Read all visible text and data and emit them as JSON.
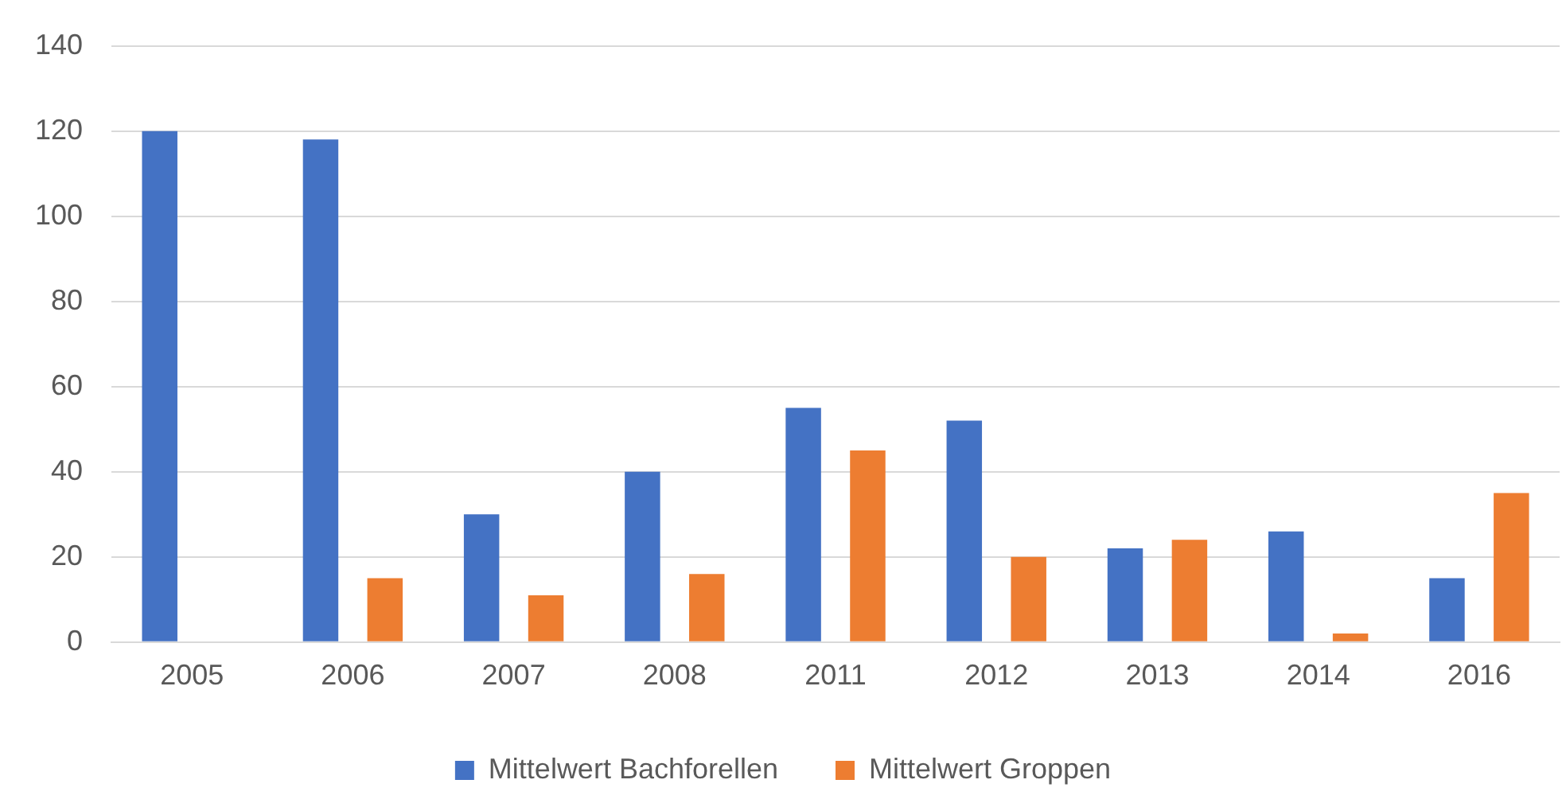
{
  "chart_data": {
    "type": "bar",
    "categories": [
      "2005",
      "2006",
      "2007",
      "2008",
      "2011",
      "2012",
      "2013",
      "2014",
      "2016"
    ],
    "series": [
      {
        "name": "Mittelwert Bachforellen",
        "color": "#4472c4",
        "values": [
          120,
          118,
          30,
          40,
          55,
          52,
          22,
          26,
          15
        ]
      },
      {
        "name": "Mittelwert Groppen",
        "color": "#ed7d31",
        "values": [
          0,
          15,
          11,
          16,
          45,
          20,
          24,
          2,
          35
        ]
      }
    ],
    "ylim": [
      0,
      140
    ],
    "yticks": [
      0,
      20,
      40,
      60,
      80,
      100,
      120,
      140
    ],
    "grid": "y",
    "legend": "bottom"
  }
}
